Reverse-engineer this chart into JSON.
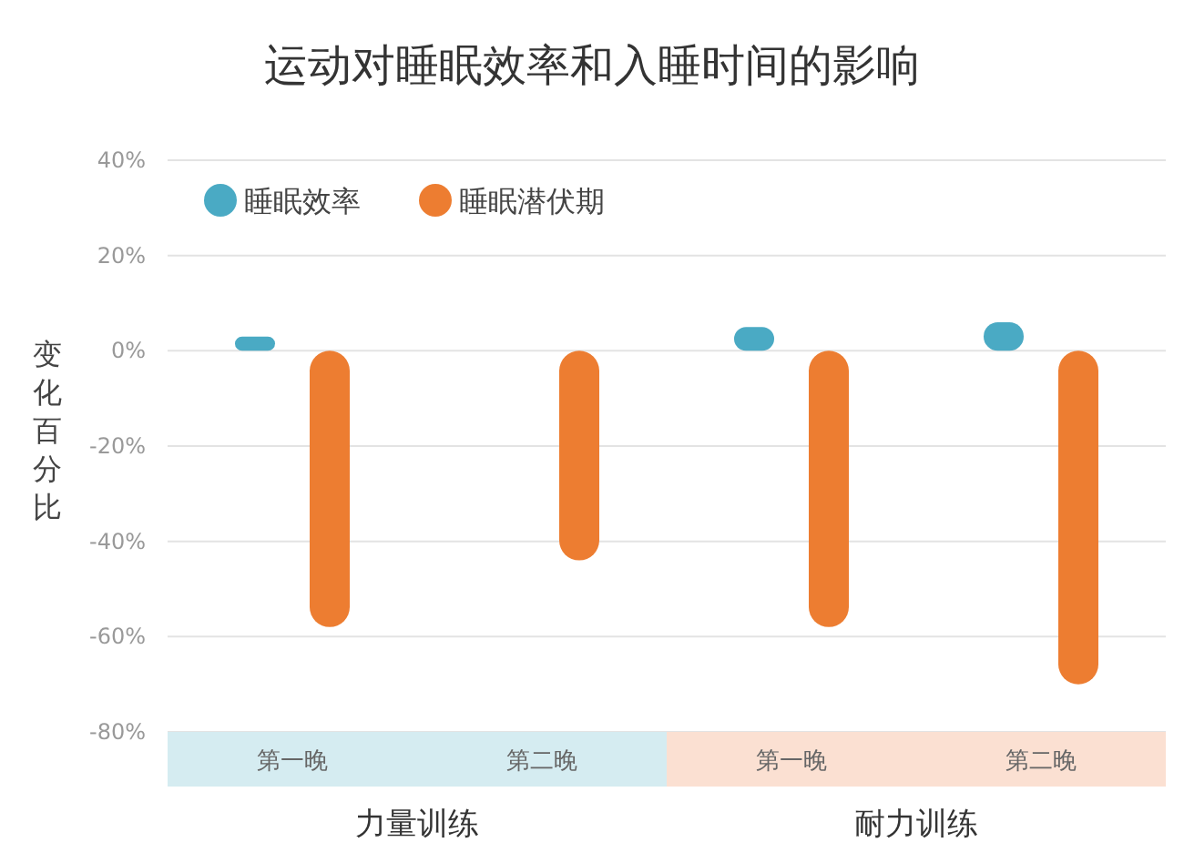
{
  "chart_data": {
    "type": "bar",
    "title": "运动对睡眠效率和入睡时间的影响",
    "ylabel": "变化百分比",
    "categories": [
      "第一晚",
      "第二晚",
      "第一晚",
      "第二晚"
    ],
    "annotations": [
      "力量训练",
      "耐力训练"
    ],
    "series": [
      {
        "name": "睡眠效率",
        "color": "#4aaac4",
        "values": [
          3,
          null,
          5,
          6
        ]
      },
      {
        "name": "睡眠潜伏期",
        "color": "#ed7d31",
        "values": [
          -58,
          -44,
          -58,
          -70
        ]
      }
    ],
    "ylim": [
      -80,
      40
    ],
    "yticks": [
      {
        "value": 40,
        "label": "40%"
      },
      {
        "value": 20,
        "label": "20%"
      },
      {
        "value": 0,
        "label": "0%"
      },
      {
        "value": -20,
        "label": "-20%"
      },
      {
        "value": -40,
        "label": "-40%"
      },
      {
        "value": -60,
        "label": "-60%"
      },
      {
        "value": -80,
        "label": "-80%"
      }
    ],
    "grid": "y",
    "legend": "top left"
  }
}
